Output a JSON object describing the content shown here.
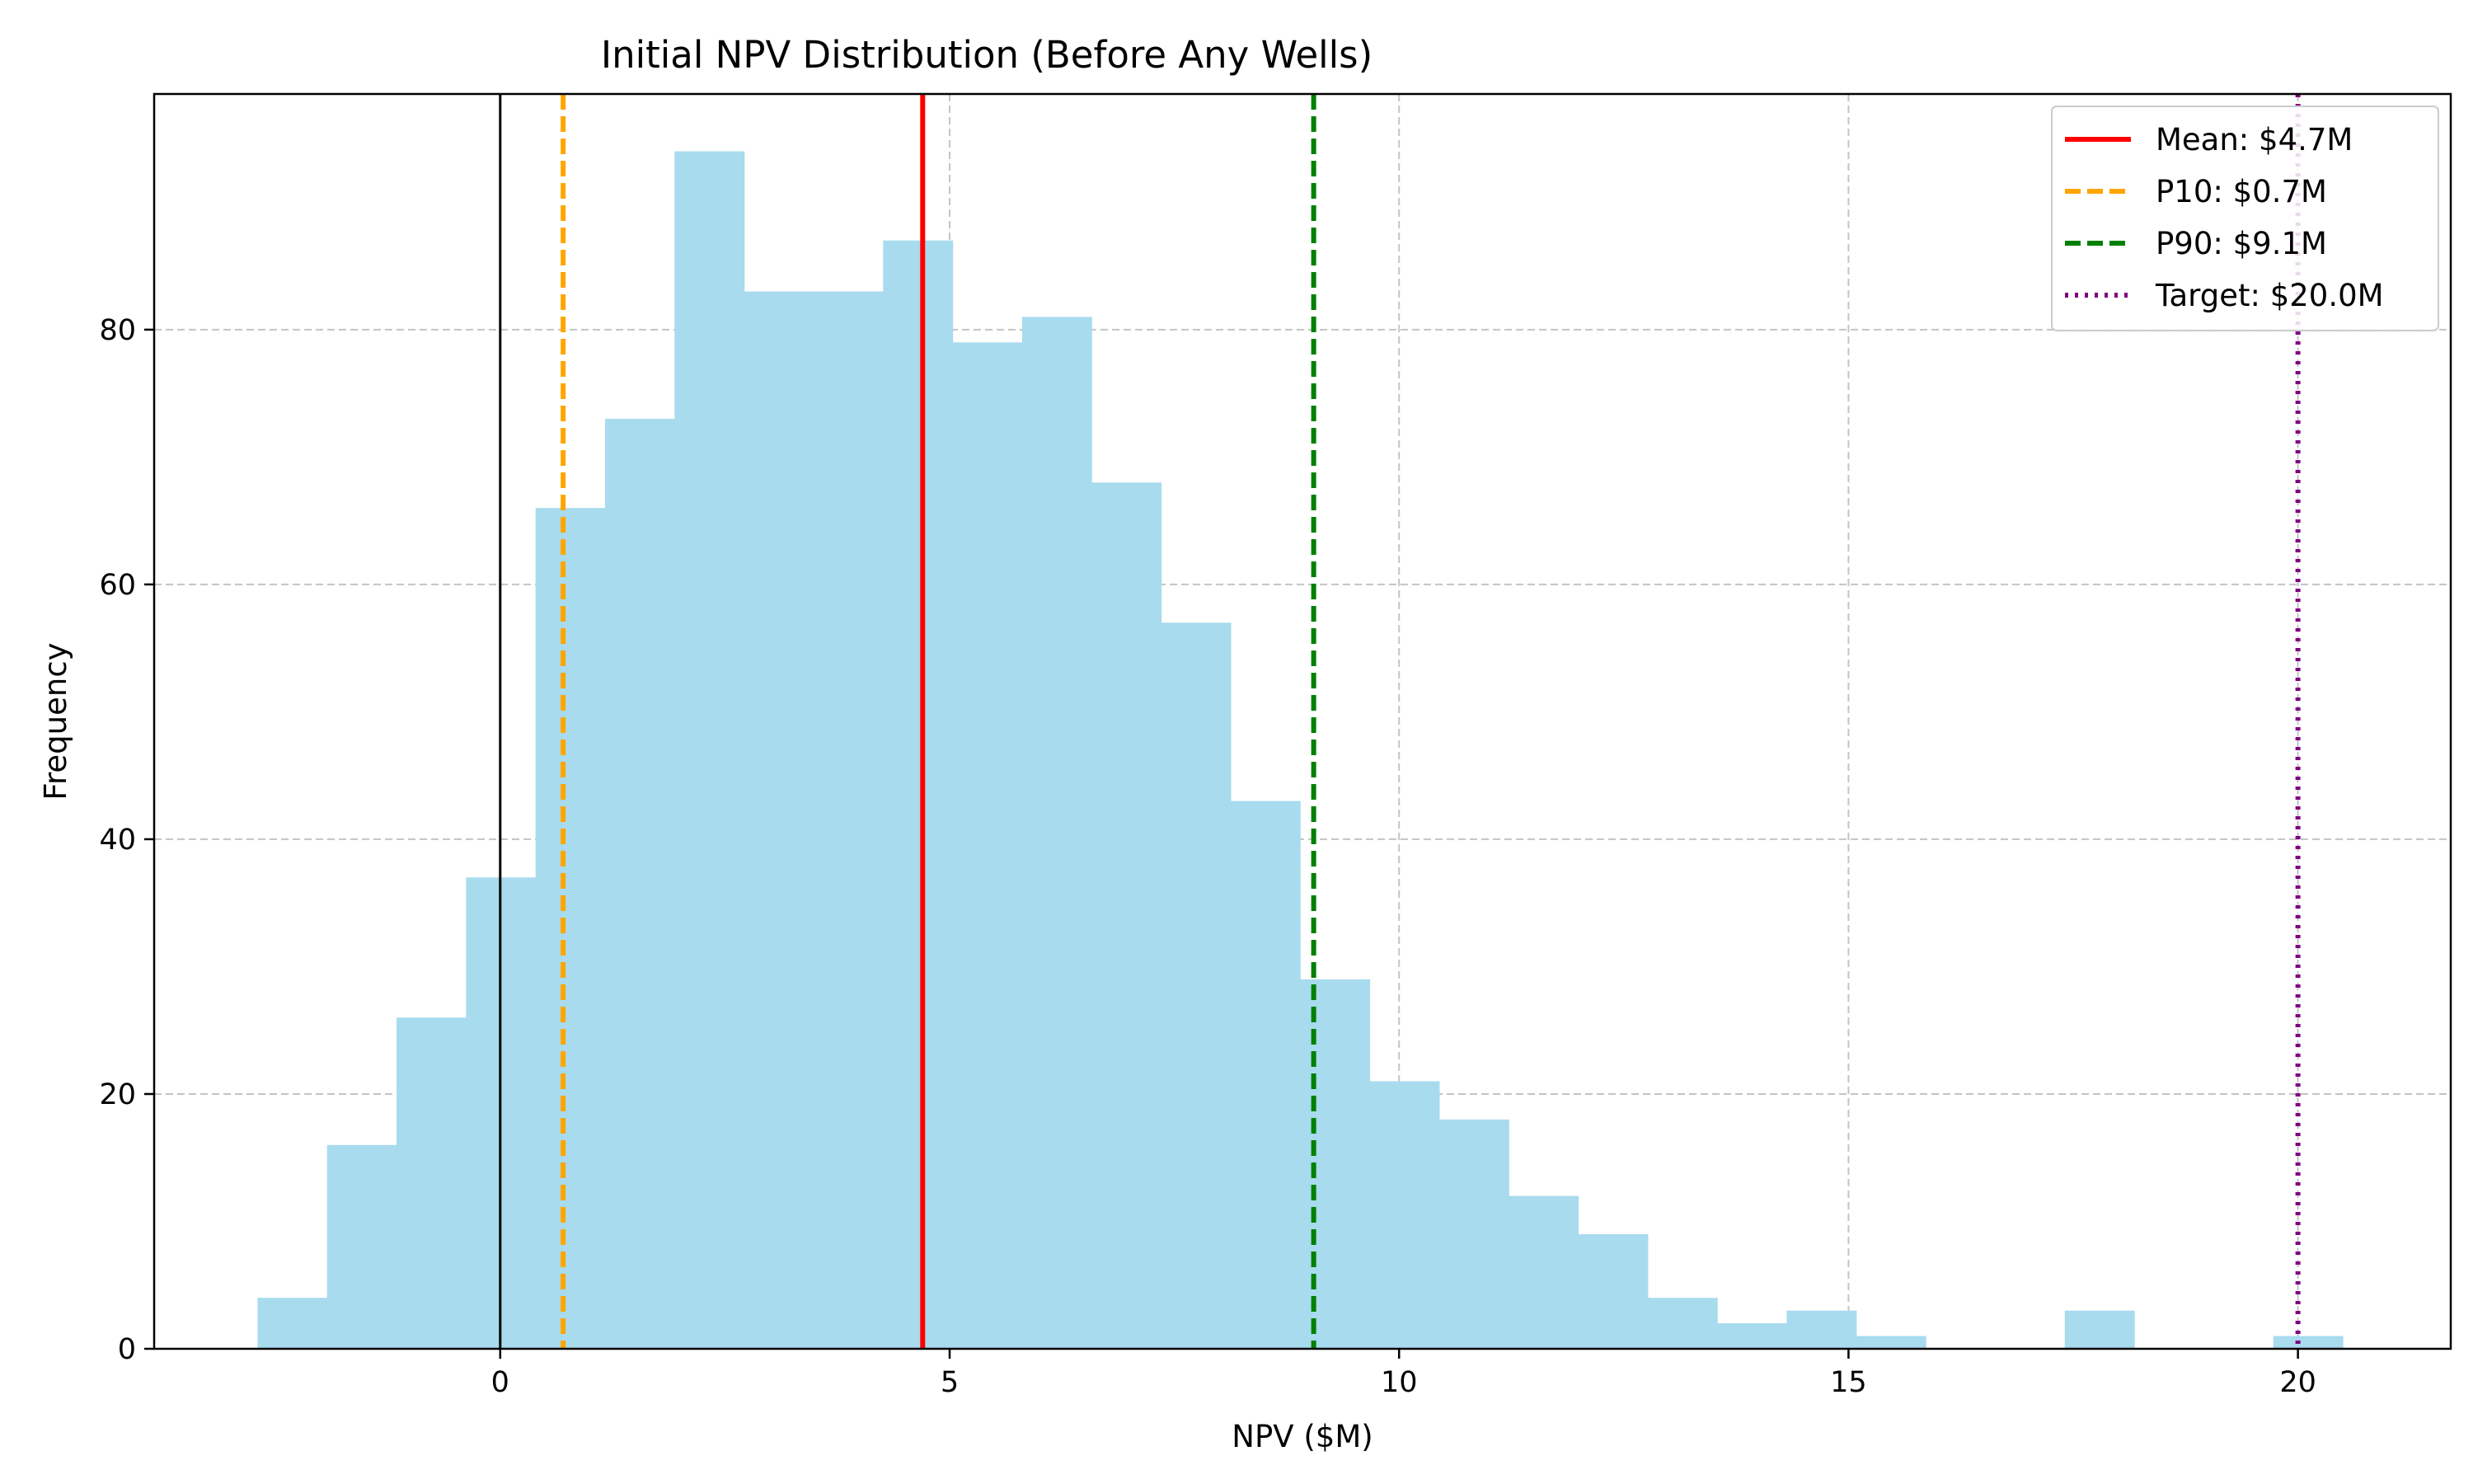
{
  "chart_data": {
    "type": "bar",
    "title": "Initial NPV Distribution (Before Any Wells)",
    "xlabel": "NPV ($M)",
    "ylabel": "Frequency",
    "xlim": [
      -3.85,
      21.7
    ],
    "ylim": [
      0,
      98.5
    ],
    "xticks": [
      0,
      5,
      10,
      15,
      20
    ],
    "yticks": [
      0,
      20,
      40,
      60,
      80
    ],
    "grid": true,
    "legend_position": "top-right",
    "bar_color": "#a8dbee",
    "bin_start": -2.7,
    "bin_width": 0.7733,
    "counts": [
      4,
      16,
      26,
      37,
      66,
      73,
      94,
      83,
      83,
      87,
      79,
      81,
      68,
      57,
      43,
      29,
      21,
      18,
      12,
      9,
      4,
      2,
      3,
      1,
      0,
      0,
      3,
      0,
      0,
      1
    ],
    "zero_line": {
      "x": 0,
      "color": "#000000"
    },
    "reference_lines": [
      {
        "label": "Mean: $4.7M",
        "x": 4.7,
        "color": "#ff0000",
        "style": "solid"
      },
      {
        "label": "P10: $0.7M",
        "x": 0.7,
        "color": "#ffa500",
        "style": "dashed"
      },
      {
        "label": "P90: $9.1M",
        "x": 9.05,
        "color": "#008000",
        "style": "dashed"
      },
      {
        "label": "Target: $20.0M",
        "x": 20.0,
        "color": "#800080",
        "style": "dotted"
      }
    ]
  }
}
